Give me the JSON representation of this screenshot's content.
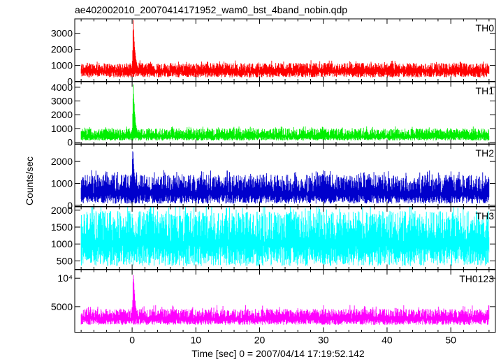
{
  "chart_data": {
    "type": "line",
    "title": "ae402002010_20070414171952_wam0_bst_4band_nobin.qdp",
    "xlabel": "Time [sec] 0 = 2007/04/14 17:19:52.142",
    "ylabel": "Counts/sec",
    "xlim": [
      -9,
      57
    ],
    "x_ticks": [
      0,
      10,
      20,
      30,
      40,
      50
    ],
    "x_tick_labels": [
      "0",
      "10",
      "20",
      "30",
      "40",
      "50"
    ],
    "grid": false,
    "series": [
      {
        "name": "TH0",
        "color": "#ff0000",
        "ylim": [
          0,
          3900
        ],
        "y_ticks": [
          0,
          1000,
          2000,
          3000
        ],
        "y_tick_labels": [
          "0",
          "1000",
          "2000",
          "3000"
        ],
        "x_start": -8,
        "x_end": 56,
        "baseline_mean": 650,
        "noise_low": 250,
        "noise_high": 1150,
        "peak_time": 0.2,
        "peak_value": 3900
      },
      {
        "name": "TH1",
        "color": "#00ee00",
        "ylim": [
          -150,
          4400
        ],
        "y_ticks": [
          0,
          1000,
          2000,
          3000,
          4000
        ],
        "y_tick_labels": [
          "0",
          "1000",
          "2000",
          "3000",
          "4000"
        ],
        "x_start": -8,
        "x_end": 56,
        "baseline_mean": 430,
        "noise_low": 120,
        "noise_high": 1000,
        "peak_time": 0.2,
        "peak_value": 4300
      },
      {
        "name": "TH2",
        "color": "#0000cc",
        "ylim": [
          -50,
          2800
        ],
        "y_ticks": [
          0,
          1000,
          2000
        ],
        "y_tick_labels": [
          "0",
          "1000",
          "2000"
        ],
        "x_start": -8,
        "x_end": 56,
        "baseline_mean": 550,
        "noise_low": 80,
        "noise_high": 1400,
        "peak_time": 0.1,
        "peak_value": 2800
      },
      {
        "name": "TH3",
        "color": "#00ffff",
        "ylim": [
          250,
          2100
        ],
        "y_ticks": [
          500,
          1000,
          1500,
          2000
        ],
        "y_tick_labels": [
          "500",
          "1000",
          "1500",
          "2000"
        ],
        "x_start": -8,
        "x_end": 56,
        "baseline_mean": 1050,
        "noise_low": 350,
        "noise_high": 1980,
        "peak_time": null,
        "peak_value": null
      },
      {
        "name": "TH0123",
        "color": "#ff00ff",
        "ylim": [
          500,
          11500
        ],
        "y_ticks": [
          5000,
          10000
        ],
        "y_tick_labels": [
          "5000",
          "10⁴"
        ],
        "x_start": -8,
        "x_end": 56,
        "baseline_mean": 2900,
        "noise_low": 1800,
        "noise_high": 4600,
        "peak_time": 0.2,
        "peak_value": 11500
      }
    ]
  }
}
